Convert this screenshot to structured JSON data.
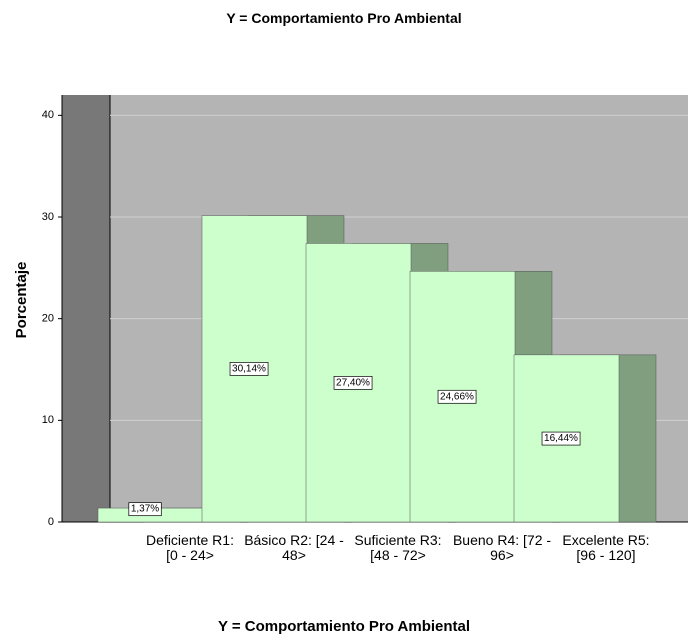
{
  "chart_data": {
    "type": "bar",
    "title": "Y = Comportamiento Pro Ambiental",
    "x_label": "Y = Comportamiento Pro Ambiental",
    "y_label": "Porcentaje",
    "categories": [
      "Deficiente R1: [0 - 24>",
      "Básico R2: [24 - 48>",
      "Suficiente R3: [48 - 72>",
      "Bueno  R4: [72 - 96>",
      "Excelente R5: [96 - 120]"
    ],
    "values": [
      1.37,
      30.14,
      27.4,
      24.66,
      16.44
    ],
    "value_labels": [
      "1,37%",
      "30,14%",
      "27,40%",
      "24,66%",
      "16,44%"
    ],
    "color": "#ccffcc",
    "ylim": [
      0,
      42
    ],
    "yticks": [
      0,
      10,
      20,
      30,
      40
    ],
    "grid": true
  }
}
